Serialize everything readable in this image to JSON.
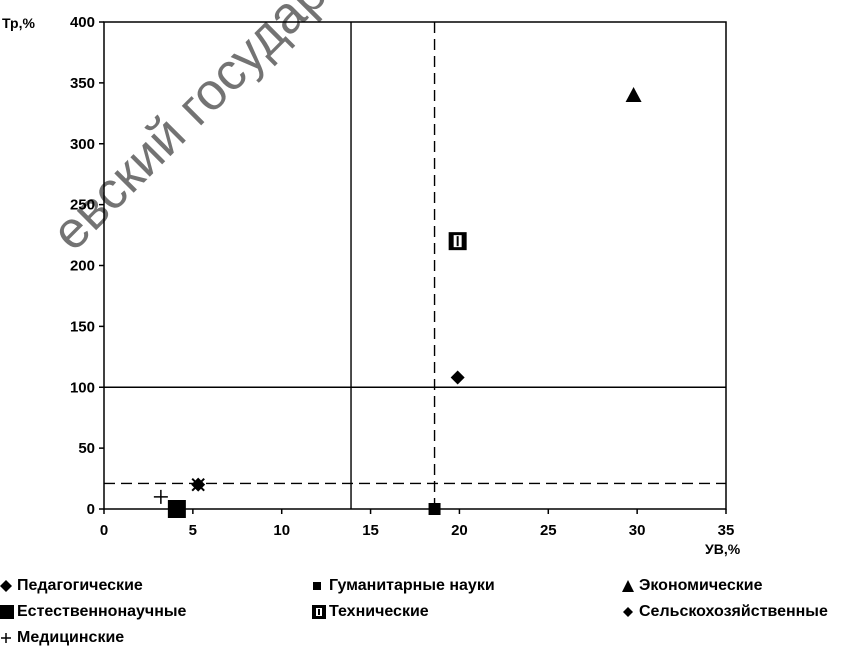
{
  "chart_data": {
    "type": "scatter",
    "ylabel": "Тр,%",
    "xlabel": "УВ,%",
    "xlim": [
      0,
      35
    ],
    "ylim": [
      0,
      400
    ],
    "x_ticks": [
      "0",
      "5",
      "10",
      "15",
      "20",
      "25",
      "30",
      "35"
    ],
    "x_tick_values": [
      0,
      5,
      10,
      15,
      20,
      25,
      30,
      35
    ],
    "y_ticks": [
      "0",
      "50",
      "100",
      "150",
      "200",
      "250",
      "300",
      "350",
      "400"
    ],
    "y_tick_values": [
      0,
      50,
      100,
      150,
      200,
      250,
      300,
      350,
      400
    ],
    "grid": false,
    "legend_position": "bottom",
    "series": [
      {
        "name": "Педагогические",
        "marker": "diamond",
        "points": [
          {
            "x": 5.3,
            "y": 20
          }
        ]
      },
      {
        "name": "Гуманитарные науки",
        "marker": "small-square",
        "points": [
          {
            "x": 18.6,
            "y": 0
          }
        ]
      },
      {
        "name": "Экономические",
        "marker": "triangle",
        "points": [
          {
            "x": 29.8,
            "y": 340
          }
        ]
      },
      {
        "name": "Естественнонаучные",
        "marker": "big-square",
        "points": [
          {
            "x": 4.1,
            "y": 0
          }
        ]
      },
      {
        "name": "Технические",
        "marker": "boxed-square",
        "points": [
          {
            "x": 19.9,
            "y": 220
          }
        ]
      },
      {
        "name": "Сельскохозяйственные",
        "marker": "diamond",
        "points": [
          {
            "x": 19.9,
            "y": 108
          }
        ]
      },
      {
        "name": "Медицинские",
        "marker": "plus",
        "points": [
          {
            "x": 3.2,
            "y": 10
          }
        ]
      }
    ],
    "reference_lines": [
      {
        "orientation": "vertical",
        "style": "solid",
        "x": 13.9
      },
      {
        "orientation": "vertical",
        "style": "dashed",
        "x": 18.6
      },
      {
        "orientation": "horizontal",
        "style": "solid",
        "y": 100
      },
      {
        "orientation": "horizontal",
        "style": "dashed",
        "y": 21
      }
    ]
  },
  "watermark": "евский государственн"
}
